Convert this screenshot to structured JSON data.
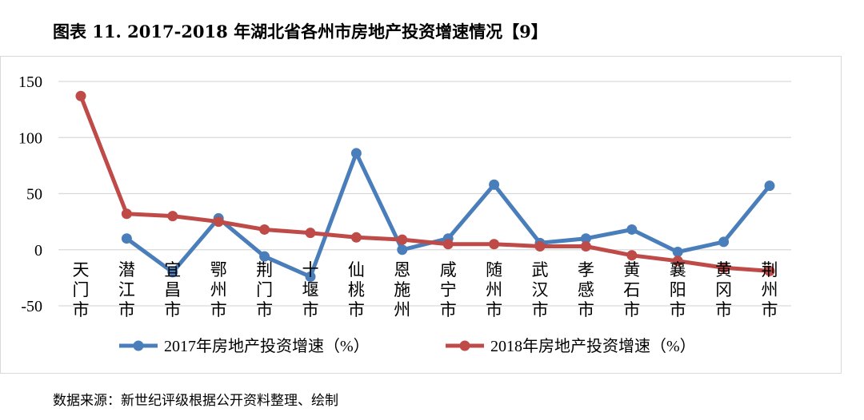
{
  "header": {
    "title": "图表 11. 2017-2018 年湖北省各州市房地产投资增速情况【9】"
  },
  "footer": {
    "source": "数据来源：新世纪评级根据公开资料整理、绘制"
  },
  "colors": {
    "series2017": "#4a7ebb",
    "series2018": "#be4b48",
    "grid": "#d9d9d9"
  },
  "chart_data": {
    "type": "line",
    "title": "",
    "xlabel": "",
    "ylabel": "",
    "ylim": [
      -50,
      150
    ],
    "yticks": [
      150,
      100,
      50,
      0,
      -50
    ],
    "ytick_labels": [
      "150",
      "100",
      "50",
      "0",
      "-50"
    ],
    "categories": [
      "天门市",
      "潜江市",
      "宜昌市",
      "鄂州市",
      "荆门市",
      "十堰市",
      "仙桃市",
      "恩施州",
      "咸宁市",
      "随州市",
      "武汉市",
      "孝感市",
      "黄石市",
      "襄阳市",
      "黄冈市",
      "荆州市"
    ],
    "legend_position": "bottom",
    "series": [
      {
        "name": "2017年房地产投资增速（%）",
        "values": [
          null,
          10,
          -20,
          28,
          -6,
          -24,
          86,
          0,
          10,
          58,
          6,
          10,
          18,
          -2,
          7,
          57
        ]
      },
      {
        "name": "2018年房地产投资增速（%）",
        "values": [
          137,
          32,
          30,
          25,
          18,
          15,
          11,
          9,
          5,
          5,
          3,
          3,
          -5,
          -10,
          -16,
          -19
        ]
      }
    ]
  }
}
